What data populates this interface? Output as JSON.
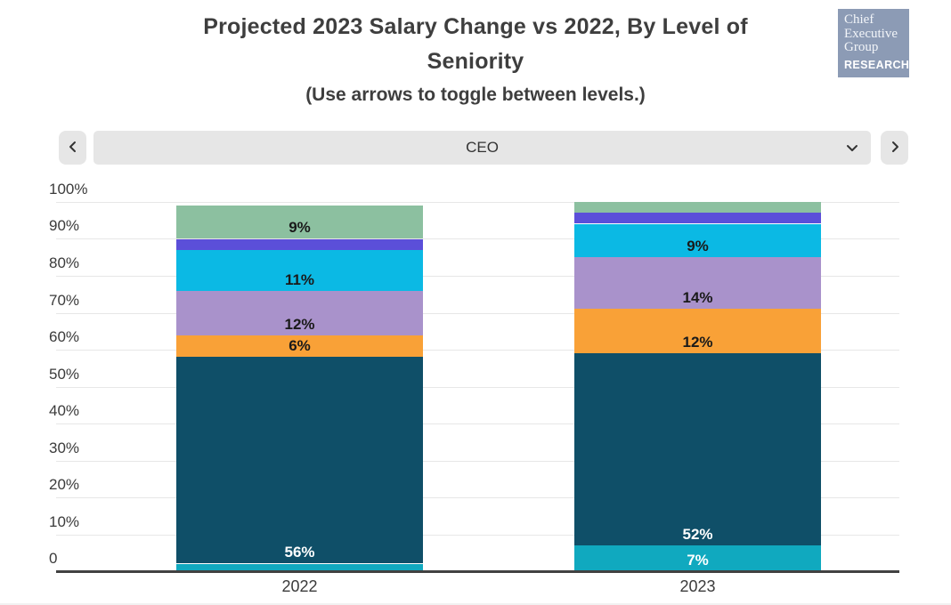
{
  "header": {
    "title_line1": "Projected 2023 Salary Change vs 2022, By Level of",
    "title_line2": "Seniority",
    "subtitle": "(Use arrows to toggle between levels.)",
    "logo": {
      "line1": "Chief",
      "line2": "Executive",
      "line3": "Group",
      "research": "RESEARCH",
      "bg_color": "#8C9BB5"
    }
  },
  "controls": {
    "selected_level": "CEO",
    "prev_icon": "chevron-left-icon",
    "next_icon": "chevron-right-icon",
    "dropdown_icon": "chevron-down-icon"
  },
  "chart_data": {
    "type": "bar",
    "stacked": true,
    "title": "Projected 2023 Salary Change vs 2022, By Level of Seniority",
    "categories": [
      "2022",
      "2023"
    ],
    "xlabel": "",
    "ylabel": "",
    "ylim": [
      0,
      100
    ],
    "grid": true,
    "legend": "none",
    "y_ticks": [
      "100%",
      "90%",
      "80%",
      "70%",
      "60%",
      "50%",
      "40%",
      "30%",
      "20%",
      "10%",
      "0"
    ],
    "series": [
      {
        "name": "segment-teal",
        "color": "#10A9BF",
        "values": [
          2,
          7
        ],
        "labels": [
          "",
          "7%"
        ],
        "label_color": "#FFFFFF"
      },
      {
        "name": "segment-dark-teal",
        "color": "#0F4F68",
        "values": [
          56,
          52
        ],
        "labels": [
          "56%",
          "52%"
        ],
        "label_color": "#FFFFFF"
      },
      {
        "name": "segment-orange",
        "color": "#F9A137",
        "values": [
          6,
          12
        ],
        "labels": [
          "6%",
          "12%"
        ],
        "label_color": "#1A1A1A"
      },
      {
        "name": "segment-lavender",
        "color": "#A992CB",
        "values": [
          12,
          14
        ],
        "labels": [
          "12%",
          "14%"
        ],
        "label_color": "#1A1A1A"
      },
      {
        "name": "segment-cyan",
        "color": "#0BB9E4",
        "values": [
          11,
          9
        ],
        "labels": [
          "11%",
          "9%"
        ],
        "label_color": "#1A1A1A"
      },
      {
        "name": "segment-violet",
        "color": "#5B4FD9",
        "values": [
          3,
          3
        ],
        "labels": [
          "",
          ""
        ],
        "label_color": "#1A1A1A"
      },
      {
        "name": "segment-green",
        "color": "#8CC0A0",
        "values": [
          9,
          3
        ],
        "labels": [
          "9%",
          ""
        ],
        "label_color": "#1A1A1A"
      }
    ]
  }
}
